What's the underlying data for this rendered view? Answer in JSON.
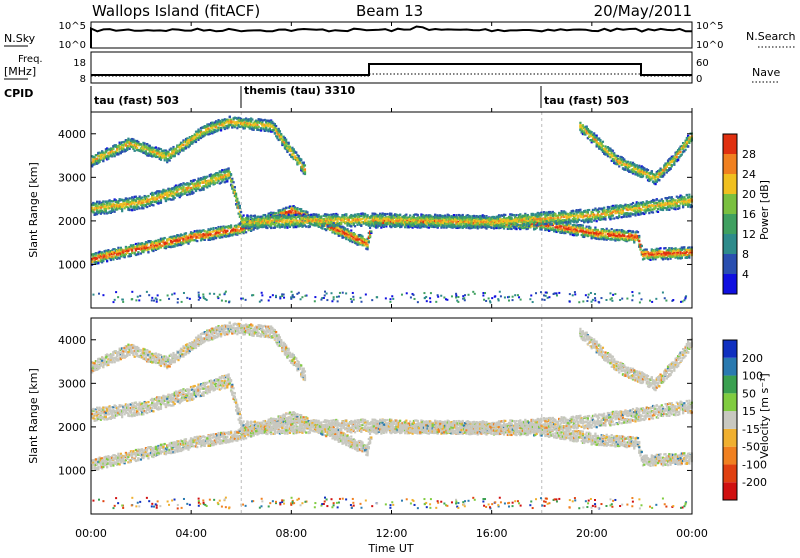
{
  "header": {
    "station": "Wallops Island (fitACF)",
    "beam": "Beam 13",
    "date": "20/May/2011"
  },
  "noise_panel": {
    "left_label": "N.Sky",
    "right_label": "N.Search",
    "left_ticks": [
      "10^5",
      "10^0"
    ],
    "right_ticks": [
      "10^5",
      "10^0"
    ]
  },
  "freq_panel": {
    "left_label_line1": "Freq.",
    "left_label_line2": "[MHz]",
    "right_label": "Nave",
    "left_ticks": [
      "18",
      "8"
    ],
    "right_ticks": [
      "60",
      "0"
    ]
  },
  "cpid": {
    "label": "CPID",
    "segments": [
      {
        "start_hr": 0,
        "label": "tau (fast) 503"
      },
      {
        "start_hr": 6,
        "label": "themis (tau) 3310"
      },
      {
        "start_hr": 18,
        "label": "tau (fast) 503"
      }
    ]
  },
  "chart_data": [
    {
      "type": "heatmap",
      "ylabel": "Slant Range [km]",
      "ylim": [
        0,
        4500
      ],
      "yticks": [
        "1000",
        "2000",
        "3000",
        "4000"
      ],
      "xlim_hr": [
        0,
        24
      ],
      "colorbar": {
        "label": "Power [dB]",
        "ticks": [
          "4",
          "8",
          "12",
          "16",
          "20",
          "24",
          "28"
        ],
        "colors": [
          "#1010e0",
          "#2a4fb0",
          "#2e8b8b",
          "#3fa060",
          "#7ac040",
          "#f0c020",
          "#f08020",
          "#e03010"
        ]
      },
      "bands": [
        {
          "name": "lower",
          "points": [
            [
              0,
              1150
            ],
            [
              2,
              1400
            ],
            [
              4,
              1650
            ],
            [
              6,
              1850
            ],
            [
              8,
              2250
            ],
            [
              9.5,
              1900
            ],
            [
              11,
              1500
            ],
            [
              11.2,
              2000
            ],
            [
              14,
              2000
            ],
            [
              18,
              1950
            ],
            [
              20,
              1750
            ],
            [
              21.8,
              1650
            ],
            [
              22,
              1250
            ],
            [
              24,
              1300
            ]
          ]
        },
        {
          "name": "middle",
          "points": [
            [
              0,
              2300
            ],
            [
              2,
              2450
            ],
            [
              4,
              2800
            ],
            [
              5.5,
              3100
            ],
            [
              6,
              2000
            ],
            [
              11.2,
              2050
            ],
            [
              16,
              2000
            ],
            [
              20,
              2150
            ],
            [
              24,
              2500
            ]
          ]
        },
        {
          "name": "upper",
          "points": [
            [
              0,
              3400
            ],
            [
              1.5,
              3800
            ],
            [
              3,
              3500
            ],
            [
              4.5,
              4100
            ],
            [
              5.5,
              4300
            ],
            [
              7.2,
              4200
            ],
            [
              8.5,
              3200
            ]
          ]
        },
        {
          "name": "upper_late",
          "points": [
            [
              19.5,
              4200
            ],
            [
              21,
              3400
            ],
            [
              22.5,
              3000
            ],
            [
              23.2,
              3400
            ],
            [
              24,
              4000
            ]
          ]
        }
      ]
    },
    {
      "type": "heatmap",
      "ylabel": "Slant Range [km]",
      "ylim": [
        0,
        4500
      ],
      "yticks": [
        "1000",
        "2000",
        "3000",
        "4000"
      ],
      "xlim_hr": [
        0,
        24
      ],
      "colorbar": {
        "label": "Velocity [m s⁻¹]",
        "ticks": [
          "200",
          "100",
          "50",
          "15",
          "-15",
          "-50",
          "-100",
          "-200"
        ],
        "colors": [
          "#1030c0",
          "#2a7ab0",
          "#3aa050",
          "#80cc40",
          "#c8c8c0",
          "#f0b030",
          "#f08020",
          "#e04010",
          "#d01010"
        ]
      }
    }
  ],
  "xaxis": {
    "label": "Time UT",
    "ticks": [
      "00:00",
      "04:00",
      "08:00",
      "12:00",
      "16:00",
      "20:00",
      "00:00"
    ]
  }
}
